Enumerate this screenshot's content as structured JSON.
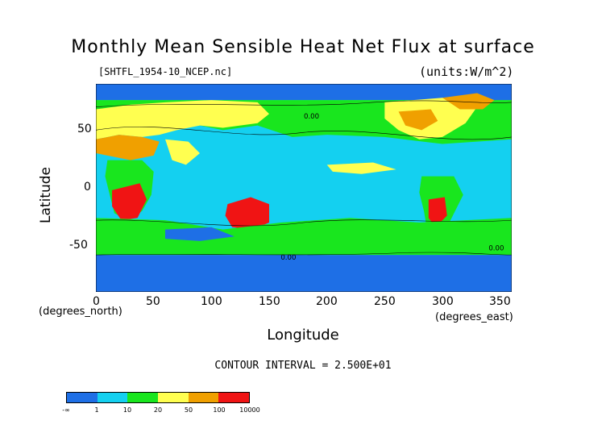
{
  "title": "Monthly Mean Sensible Heat Net Flux at surface",
  "file_label": "[SHTFL_1954-10_NCEP.nc]",
  "units_label": "(units:W/m^2)",
  "x_axis": {
    "label": "Longitude",
    "unit_label": "(degrees_east)",
    "ticks": [
      "0",
      "50",
      "100",
      "150",
      "200",
      "250",
      "300",
      "350"
    ],
    "tick_values": [
      0,
      50,
      100,
      150,
      200,
      250,
      300,
      350
    ],
    "range": [
      0,
      360
    ]
  },
  "y_axis": {
    "label": "Latitude",
    "unit_label": "(degrees_north)",
    "ticks": [
      "50",
      "0",
      "-50"
    ],
    "tick_values": [
      50,
      0,
      -50
    ],
    "range": [
      -90,
      90
    ]
  },
  "contour_interval": "CONTOUR INTERVAL = 2.500E+01",
  "colorbar": {
    "colors": [
      "#1e6fe6",
      "#14d0f0",
      "#19e61e",
      "#ffff50",
      "#f0a000",
      "#f01414"
    ],
    "labels": [
      "-∞",
      "1",
      "10",
      "20",
      "50",
      "100",
      "10000"
    ]
  },
  "contour_labels": [
    "0.00"
  ],
  "colors": {
    "ocean_base": "#14d0f0",
    "polar": "#1e6fe6",
    "land_mid": "#19e61e",
    "warm": "#ffff50",
    "hot": "#f0a000",
    "hottest": "#f01414"
  }
}
